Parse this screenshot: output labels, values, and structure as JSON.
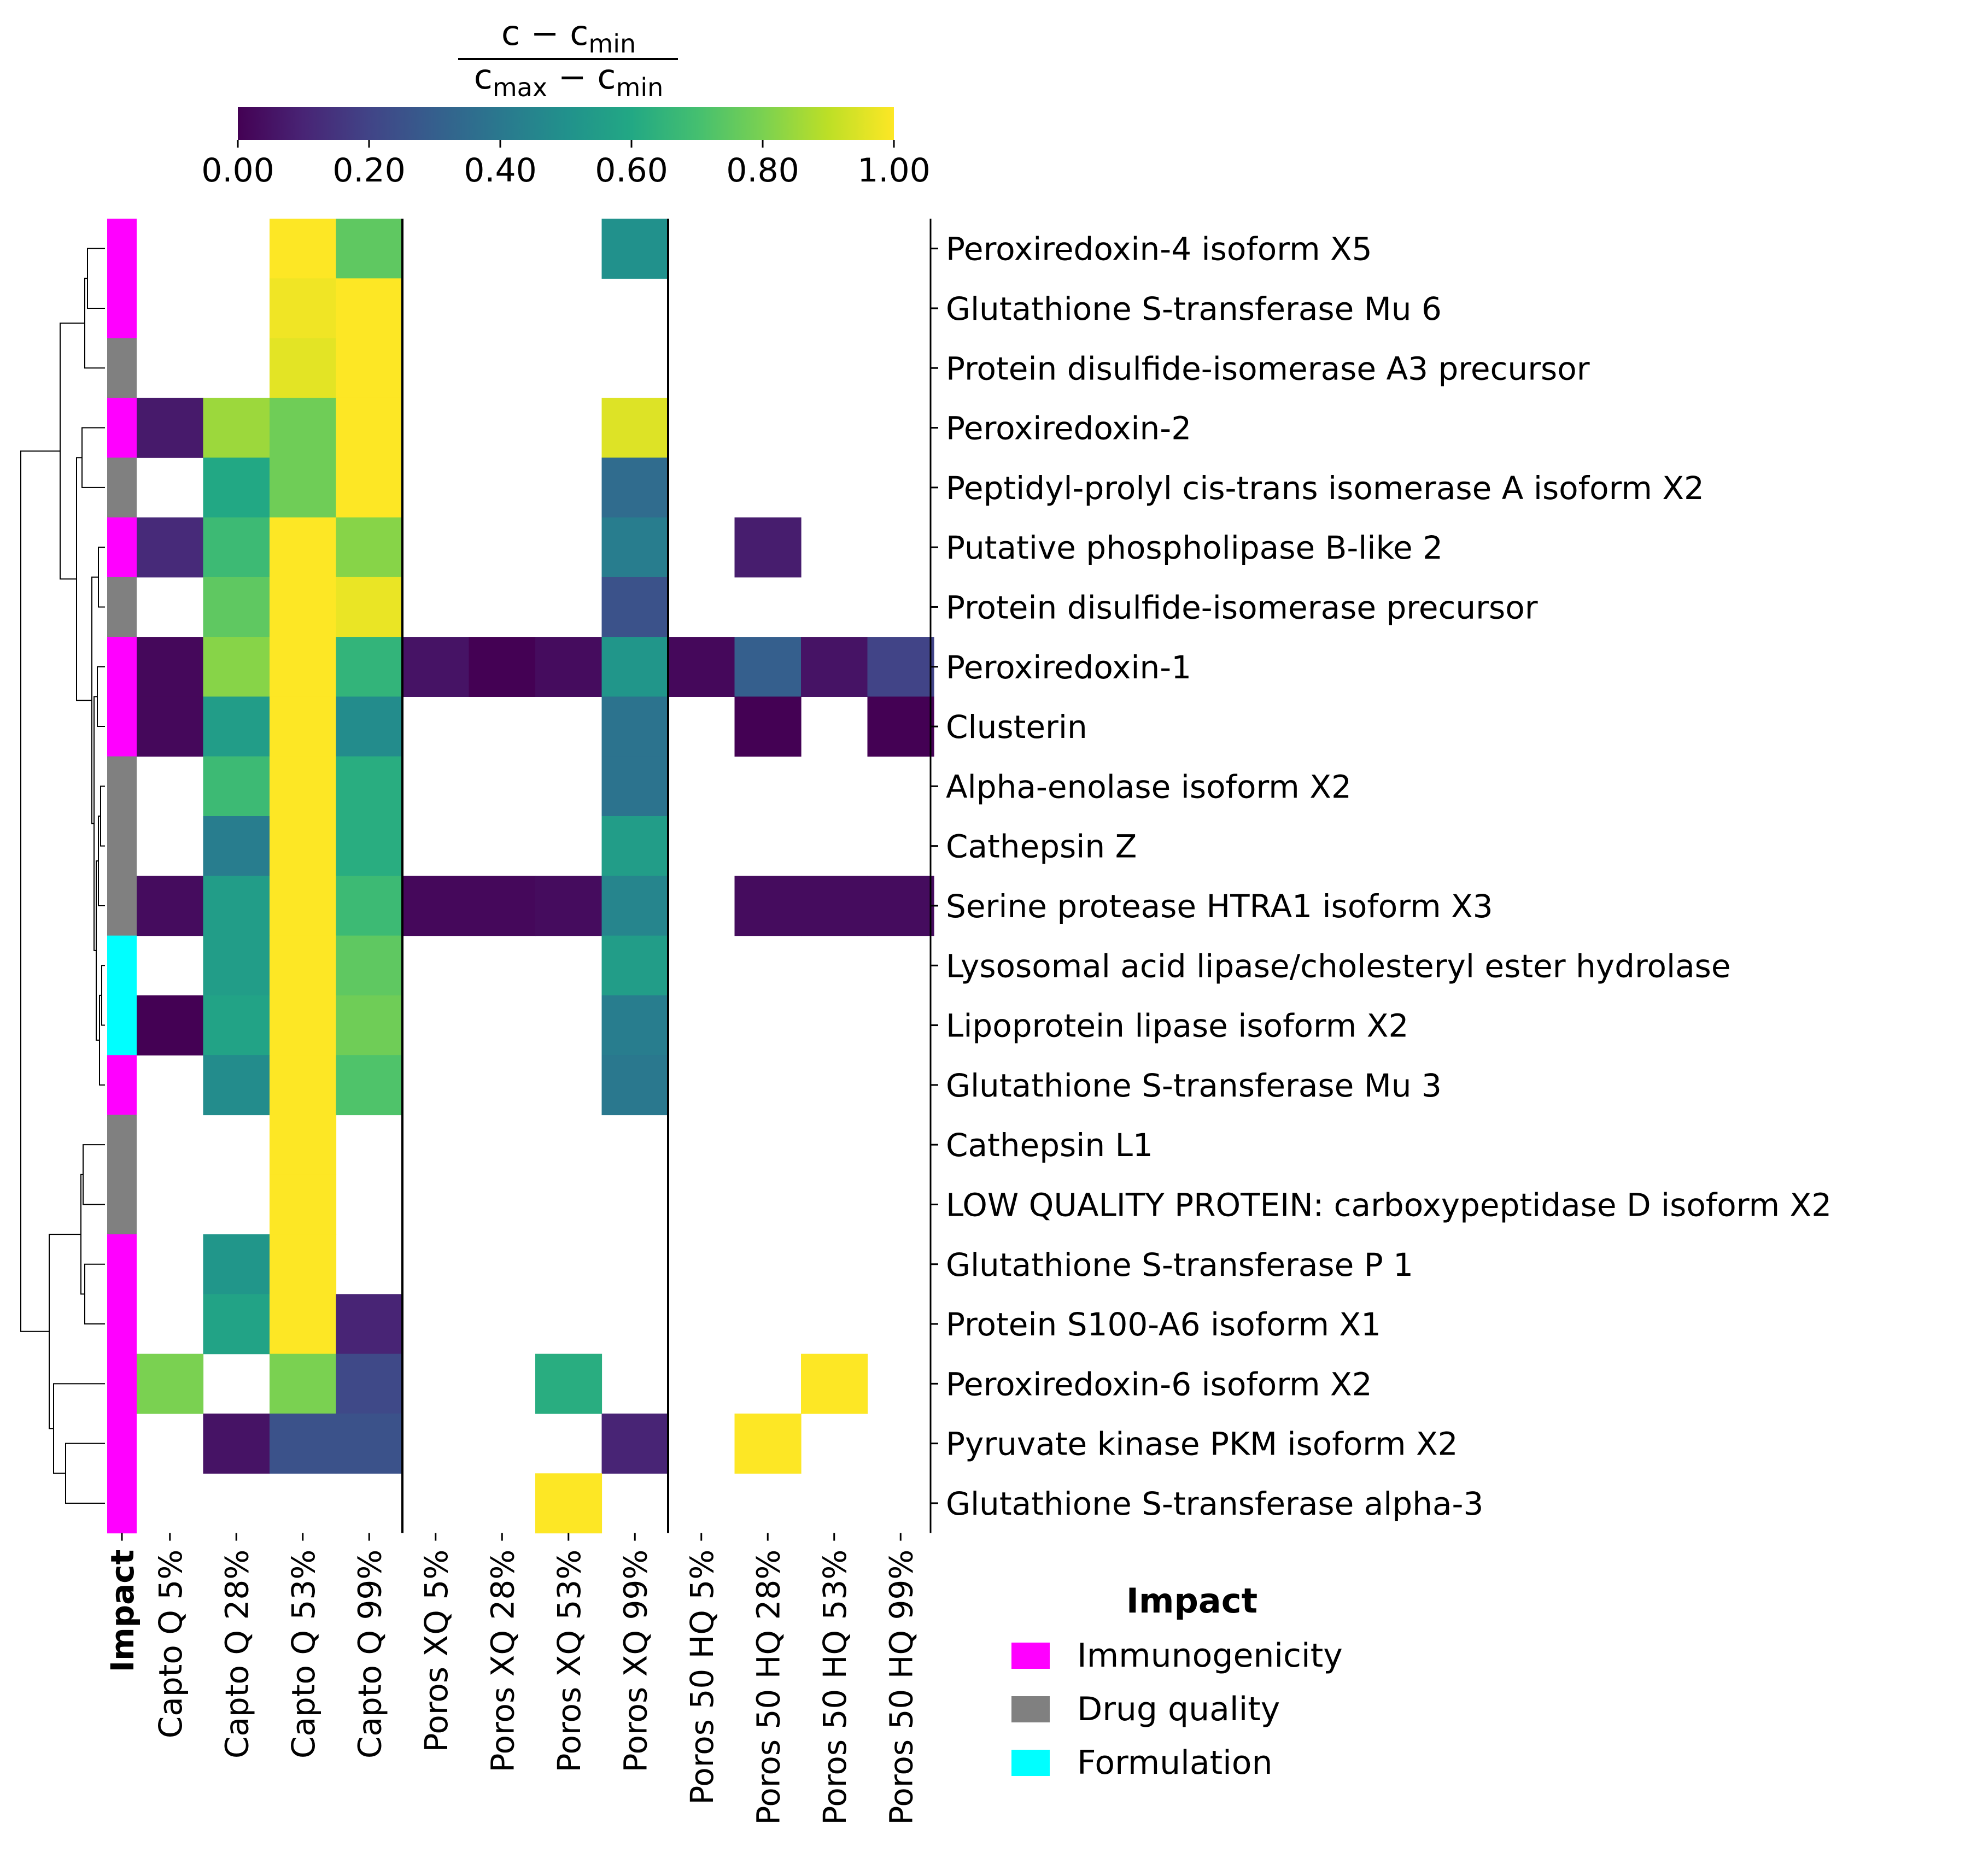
{
  "chart_data": {
    "type": "heatmap",
    "title": "",
    "colorbar": {
      "label_numerator": "c − c",
      "label_numerator_sub": "min",
      "label_denominator": "c",
      "label_denominator_sub1": "max",
      "label_denominator_mid": " − c",
      "label_denominator_sub2": "min",
      "range": [
        0,
        1
      ],
      "ticks": [
        "0.00",
        "0.20",
        "0.40",
        "0.60",
        "0.80",
        "1.00"
      ],
      "tick_values": [
        0,
        0.2,
        0.4,
        0.6,
        0.8,
        1.0
      ],
      "colormap": "viridis"
    },
    "columns": [
      "Capto Q 5%",
      "Capto Q 28%",
      "Capto Q 53%",
      "Capto Q 99%",
      "Poros XQ 5%",
      "Poros XQ 28%",
      "Poros XQ 53%",
      "Poros XQ 99%",
      "Poros 50 HQ 5%",
      "Poros 50 HQ 28%",
      "Poros 50 HQ 53%",
      "Poros 50 HQ 99%"
    ],
    "impact_column_label": "Impact",
    "rows": [
      {
        "name": "Peroxiredoxin-4 isoform X5",
        "impact": "Immunogenicity",
        "values": [
          null,
          null,
          1.0,
          0.75,
          null,
          null,
          null,
          0.5,
          null,
          null,
          null,
          null
        ]
      },
      {
        "name": "Glutathione S-transferase Mu 6",
        "impact": "Immunogenicity",
        "values": [
          null,
          null,
          0.98,
          1.0,
          null,
          null,
          null,
          null,
          null,
          null,
          null,
          null
        ]
      },
      {
        "name": "Protein disulfide-isomerase A3 precursor",
        "impact": "Drug quality",
        "values": [
          null,
          null,
          0.96,
          1.0,
          null,
          null,
          null,
          null,
          null,
          null,
          null,
          null
        ]
      },
      {
        "name": "Peroxiredoxin-2",
        "impact": "Immunogenicity",
        "values": [
          0.07,
          0.85,
          0.78,
          1.0,
          null,
          null,
          null,
          0.95,
          null,
          null,
          null,
          null
        ]
      },
      {
        "name": "Peptidyl-prolyl cis-trans isomerase A isoform X2",
        "impact": "Drug quality",
        "values": [
          null,
          0.6,
          0.78,
          1.0,
          null,
          null,
          null,
          0.35,
          null,
          null,
          null,
          null
        ]
      },
      {
        "name": "Putative phospholipase B-like 2",
        "impact": "Immunogenicity",
        "values": [
          0.12,
          0.68,
          1.0,
          0.82,
          null,
          null,
          null,
          0.42,
          null,
          0.08,
          null,
          null
        ]
      },
      {
        "name": "Protein disulfide-isomerase precursor",
        "impact": "Drug quality",
        "values": [
          null,
          0.75,
          1.0,
          0.97,
          null,
          null,
          null,
          0.25,
          null,
          null,
          null,
          null
        ]
      },
      {
        "name": "Peroxiredoxin-1",
        "impact": "Immunogenicity",
        "values": [
          0.02,
          0.82,
          1.0,
          0.65,
          0.05,
          0.0,
          0.03,
          0.52,
          0.02,
          0.3,
          0.05,
          0.2
        ]
      },
      {
        "name": "Clusterin",
        "impact": "Immunogenicity",
        "values": [
          0.02,
          0.55,
          1.0,
          0.48,
          null,
          null,
          null,
          0.38,
          null,
          0.0,
          null,
          0.0
        ]
      },
      {
        "name": "Alpha-enolase isoform X2",
        "impact": "Drug quality",
        "values": [
          null,
          0.68,
          1.0,
          0.62,
          null,
          null,
          null,
          0.38,
          null,
          null,
          null,
          null
        ]
      },
      {
        "name": "Cathepsin Z",
        "impact": "Drug quality",
        "values": [
          null,
          0.42,
          1.0,
          0.62,
          null,
          null,
          null,
          0.55,
          null,
          null,
          null,
          null
        ]
      },
      {
        "name": "Serine protease HTRA1 isoform X3",
        "impact": "Drug quality",
        "values": [
          0.03,
          0.55,
          1.0,
          0.68,
          0.02,
          0.02,
          0.03,
          0.45,
          null,
          0.03,
          0.03,
          0.03
        ]
      },
      {
        "name": "Lysosomal acid lipase/cholesteryl ester hydrolase",
        "impact": "Formulation",
        "values": [
          null,
          0.55,
          1.0,
          0.75,
          null,
          null,
          null,
          0.55,
          null,
          null,
          null,
          null
        ]
      },
      {
        "name": "Lipoprotein lipase isoform X2",
        "impact": "Formulation",
        "values": [
          0.0,
          0.58,
          1.0,
          0.78,
          null,
          null,
          null,
          0.42,
          null,
          null,
          null,
          null
        ]
      },
      {
        "name": "Glutathione S-transferase Mu 3",
        "impact": "Immunogenicity",
        "values": [
          null,
          0.48,
          1.0,
          0.72,
          null,
          null,
          null,
          0.4,
          null,
          null,
          null,
          null
        ]
      },
      {
        "name": "Cathepsin L1",
        "impact": "Drug quality",
        "values": [
          null,
          null,
          1.0,
          null,
          null,
          null,
          null,
          null,
          null,
          null,
          null,
          null
        ]
      },
      {
        "name": "LOW QUALITY PROTEIN: carboxypeptidase D isoform X2",
        "impact": "Drug quality",
        "values": [
          null,
          null,
          1.0,
          null,
          null,
          null,
          null,
          null,
          null,
          null,
          null,
          null
        ]
      },
      {
        "name": "Glutathione S-transferase P 1",
        "impact": "Immunogenicity",
        "values": [
          null,
          0.52,
          1.0,
          null,
          null,
          null,
          null,
          null,
          null,
          null,
          null,
          null
        ]
      },
      {
        "name": "Protein S100-A6 isoform X1",
        "impact": "Immunogenicity",
        "values": [
          null,
          0.58,
          1.0,
          0.1,
          null,
          null,
          null,
          null,
          null,
          null,
          null,
          null
        ]
      },
      {
        "name": "Peroxiredoxin-6 isoform X2",
        "impact": "Immunogenicity",
        "values": [
          0.8,
          null,
          0.8,
          0.22,
          null,
          null,
          0.62,
          null,
          null,
          null,
          1.0,
          null
        ]
      },
      {
        "name": "Pyruvate kinase PKM isoform X2",
        "impact": "Immunogenicity",
        "values": [
          null,
          0.05,
          0.25,
          0.25,
          null,
          null,
          null,
          0.1,
          null,
          1.0,
          null,
          null
        ]
      },
      {
        "name": "Glutathione S-transferase alpha-3",
        "impact": "Immunogenicity",
        "values": [
          null,
          null,
          null,
          null,
          null,
          null,
          1.0,
          null,
          null,
          null,
          null,
          null
        ]
      }
    ],
    "legend": {
      "title": "Impact",
      "entries": [
        {
          "label": "Immunogenicity",
          "color": "#ff00ff"
        },
        {
          "label": "Drug quality",
          "color": "#808080"
        },
        {
          "label": "Formulation",
          "color": "#00ffff"
        }
      ]
    },
    "dendrogram": "rows clustered (hierarchical)"
  }
}
